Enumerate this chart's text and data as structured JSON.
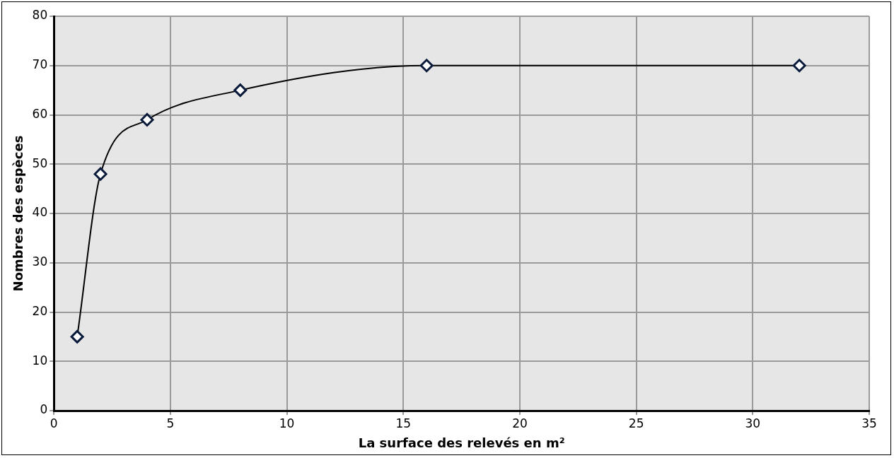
{
  "chart_data": {
    "type": "line",
    "xlabel": "La surface des relevés en m²",
    "ylabel": "Nombres des espèces",
    "x": [
      1,
      2,
      4,
      8,
      16,
      32
    ],
    "series": [
      {
        "color": "#000000",
        "values": [
          15,
          48,
          59,
          65,
          70,
          70
        ]
      }
    ],
    "xlim": [
      0,
      35
    ],
    "xticks": [
      0,
      5,
      10,
      15,
      20,
      25,
      30,
      35
    ],
    "ylim": [
      0,
      80
    ],
    "yticks": [
      0,
      10,
      20,
      30,
      40,
      50,
      60,
      70,
      80
    ],
    "grid": true,
    "legend": false,
    "marker": "diamond",
    "line_style": "solid"
  }
}
